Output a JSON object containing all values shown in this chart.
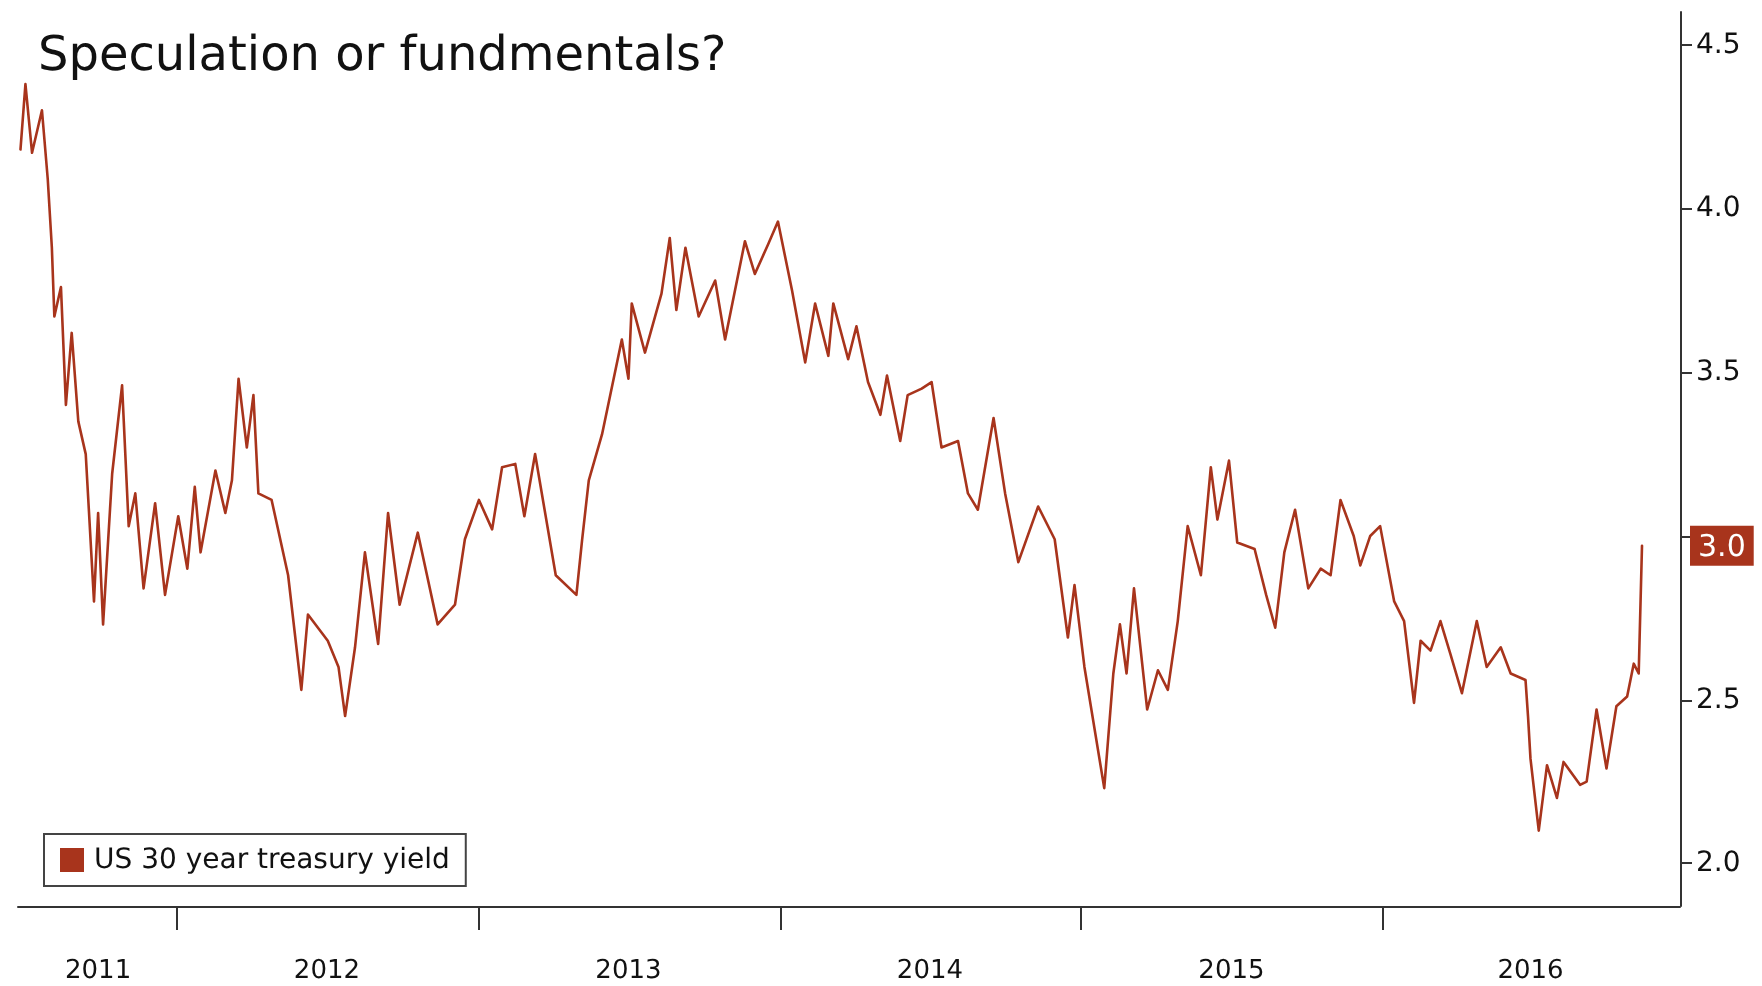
{
  "chart_data": {
    "type": "line",
    "title": "Speculation or fundmentals?",
    "x": [
      "2011-06-27",
      "2011-07-03",
      "2011-07-11",
      "2011-07-23",
      "2011-07-30",
      "2011-08-04",
      "2011-08-07",
      "2011-08-15",
      "2011-08-21",
      "2011-08-28",
      "2011-09-05",
      "2011-09-14",
      "2011-09-24",
      "2011-09-29",
      "2011-10-05",
      "2011-10-16",
      "2011-10-28",
      "2011-11-05",
      "2011-11-13",
      "2011-11-23",
      "2011-12-07",
      "2011-12-19",
      "2012-01-04",
      "2012-01-15",
      "2012-01-24",
      "2012-01-31",
      "2012-02-18",
      "2012-03-01",
      "2012-03-09",
      "2012-03-17",
      "2012-03-27",
      "2012-04-04",
      "2012-04-10",
      "2012-04-26",
      "2012-05-16",
      "2012-06-01",
      "2012-06-09",
      "2012-07-03",
      "2012-07-16",
      "2012-07-24",
      "2012-08-05",
      "2012-08-17",
      "2012-09-02",
      "2012-09-14",
      "2012-09-28",
      "2012-10-20",
      "2012-11-13",
      "2012-12-04",
      "2012-12-16",
      "2013-01-02",
      "2013-01-18",
      "2013-01-30",
      "2013-02-15",
      "2013-02-26",
      "2013-03-11",
      "2013-04-05",
      "2013-04-30",
      "2013-05-07",
      "2013-05-15",
      "2013-05-31",
      "2013-06-24",
      "2013-07-02",
      "2013-07-06",
      "2013-07-22",
      "2013-08-11",
      "2013-08-21",
      "2013-08-29",
      "2013-09-09",
      "2013-09-25",
      "2013-10-15",
      "2013-10-27",
      "2013-11-20",
      "2013-12-02",
      "2013-12-18",
      "2013-12-30",
      "2014-01-16",
      "2014-02-01",
      "2014-02-13",
      "2014-03-01",
      "2014-03-07",
      "2014-03-25",
      "2014-04-04",
      "2014-04-18",
      "2014-05-03",
      "2014-05-11",
      "2014-05-27",
      "2014-06-05",
      "2014-06-22",
      "2014-07-04",
      "2014-07-16",
      "2014-08-05",
      "2014-08-17",
      "2014-08-29",
      "2014-09-17",
      "2014-10-01",
      "2014-10-17",
      "2014-11-10",
      "2014-11-30",
      "2014-12-16",
      "2014-12-24",
      "2015-01-05",
      "2015-01-29",
      "2015-02-09",
      "2015-02-17",
      "2015-02-25",
      "2015-03-06",
      "2015-03-22",
      "2015-04-04",
      "2015-04-16",
      "2015-04-28",
      "2015-05-10",
      "2015-05-26",
      "2015-06-07",
      "2015-06-15",
      "2015-06-29",
      "2015-07-09",
      "2015-07-30",
      "2015-08-13",
      "2015-08-24",
      "2015-09-04",
      "2015-09-17",
      "2015-10-03",
      "2015-10-18",
      "2015-10-30",
      "2015-11-11",
      "2015-11-27",
      "2015-12-05",
      "2015-12-17",
      "2015-12-29",
      "2016-01-15",
      "2016-01-27",
      "2016-02-08",
      "2016-02-16",
      "2016-02-28",
      "2016-03-11",
      "2016-03-23",
      "2016-04-06",
      "2016-04-24",
      "2016-05-06",
      "2016-05-23",
      "2016-06-04",
      "2016-06-22",
      "2016-06-25",
      "2016-06-28",
      "2016-07-08",
      "2016-07-18",
      "2016-07-30",
      "2016-08-07",
      "2016-08-27",
      "2016-09-04",
      "2016-09-16",
      "2016-09-28",
      "2016-10-10",
      "2016-10-23",
      "2016-10-31",
      "2016-11-06",
      "2016-11-10"
    ],
    "series": [
      {
        "name": "US 30 year treasury yield",
        "color": "#a8341c",
        "values": [
          4.18,
          4.38,
          4.17,
          4.3,
          4.09,
          3.88,
          3.67,
          3.76,
          3.4,
          3.62,
          3.35,
          3.25,
          2.8,
          3.07,
          2.73,
          3.19,
          3.46,
          3.03,
          3.13,
          2.84,
          3.1,
          2.82,
          3.06,
          2.9,
          3.15,
          2.95,
          3.2,
          3.07,
          3.17,
          3.48,
          3.27,
          3.43,
          3.13,
          3.11,
          2.88,
          2.53,
          2.76,
          2.68,
          2.6,
          2.45,
          2.66,
          2.95,
          2.67,
          3.07,
          2.79,
          3.01,
          2.73,
          2.79,
          2.99,
          3.11,
          3.02,
          3.21,
          3.22,
          3.06,
          3.25,
          2.88,
          2.82,
          2.99,
          3.17,
          3.31,
          3.6,
          3.48,
          3.71,
          3.56,
          3.74,
          3.91,
          3.69,
          3.88,
          3.67,
          3.78,
          3.6,
          3.9,
          3.8,
          3.89,
          3.96,
          3.75,
          3.53,
          3.71,
          3.55,
          3.71,
          3.54,
          3.64,
          3.47,
          3.37,
          3.49,
          3.29,
          3.43,
          3.45,
          3.47,
          3.27,
          3.29,
          3.13,
          3.08,
          3.36,
          3.13,
          2.92,
          3.09,
          2.99,
          2.69,
          2.85,
          2.6,
          2.23,
          2.58,
          2.73,
          2.58,
          2.84,
          2.47,
          2.59,
          2.53,
          2.74,
          3.03,
          2.88,
          3.21,
          3.05,
          3.23,
          2.98,
          2.96,
          2.82,
          2.72,
          2.95,
          3.08,
          2.84,
          2.9,
          2.88,
          3.11,
          3.0,
          2.91,
          3.0,
          3.03,
          2.8,
          2.74,
          2.49,
          2.68,
          2.65,
          2.74,
          2.64,
          2.52,
          2.74,
          2.6,
          2.66,
          2.58,
          2.56,
          2.45,
          2.32,
          2.1,
          2.3,
          2.2,
          2.31,
          2.24,
          2.25,
          2.47,
          2.29,
          2.48,
          2.51,
          2.61,
          2.58,
          2.97
        ],
        "value_labels": [
          null,
          null,
          null,
          null,
          null,
          null,
          null,
          null,
          null,
          null,
          null,
          null,
          null,
          null,
          null,
          null,
          null,
          null,
          null,
          null,
          null,
          null,
          null,
          null,
          null,
          null,
          null,
          null,
          null,
          null,
          null,
          null,
          null,
          null,
          null,
          null,
          null,
          null,
          null,
          null,
          null,
          null,
          null,
          null,
          null,
          null,
          null,
          null,
          null,
          null,
          null,
          null,
          null,
          null,
          null,
          null,
          null,
          null,
          null,
          null,
          null,
          null,
          null,
          null,
          null,
          null,
          null,
          null,
          null,
          null,
          null,
          null,
          null,
          null,
          null,
          null,
          null,
          null,
          null,
          null,
          null,
          null,
          null,
          null,
          null,
          null,
          null,
          null,
          null,
          null,
          null,
          null,
          null,
          null,
          null,
          null,
          null,
          null,
          null,
          null,
          null,
          null,
          null,
          null,
          null,
          null,
          null,
          null,
          null,
          null,
          null,
          null,
          null,
          null,
          null,
          null,
          null,
          null,
          null,
          null,
          null,
          null,
          null,
          null,
          null,
          null,
          null,
          null,
          null,
          null,
          null,
          null,
          null,
          null,
          null,
          null,
          null,
          null,
          null,
          null,
          null,
          null,
          null,
          null,
          null,
          null,
          null,
          null,
          null,
          null,
          null,
          null,
          null,
          null,
          null,
          null,
          "3.0"
        ]
      }
    ],
    "xlim": [
      "2011-06-24",
      "2016-12-26"
    ],
    "xticks": [
      {
        "value": "2011-09-29",
        "label": "2011"
      },
      {
        "value": "2012-01-01",
        "label": null
      },
      {
        "value": "2012-07-02",
        "label": "2012"
      },
      {
        "value": "2013-01-01",
        "label": null
      },
      {
        "value": "2013-07-02",
        "label": "2013"
      },
      {
        "value": "2014-01-01",
        "label": null
      },
      {
        "value": "2014-07-02",
        "label": "2014"
      },
      {
        "value": "2015-01-01",
        "label": null
      },
      {
        "value": "2015-07-02",
        "label": "2015"
      },
      {
        "value": "2016-01-01",
        "label": null
      },
      {
        "value": "2016-06-28",
        "label": "2016"
      }
    ],
    "ylim": [
      1.87,
      4.6
    ],
    "yticks": [
      {
        "value": 2,
        "label": "2.0"
      },
      {
        "value": 2.5,
        "label": "2.5"
      },
      {
        "value": 3,
        "label": null
      },
      {
        "value": 3.5,
        "label": "3.5"
      },
      {
        "value": 4,
        "label": "4.0"
      },
      {
        "value": 4.5,
        "label": "4.5"
      }
    ],
    "legend": "bottom left",
    "grid": false,
    "marker": "none",
    "line_style": "solid"
  }
}
